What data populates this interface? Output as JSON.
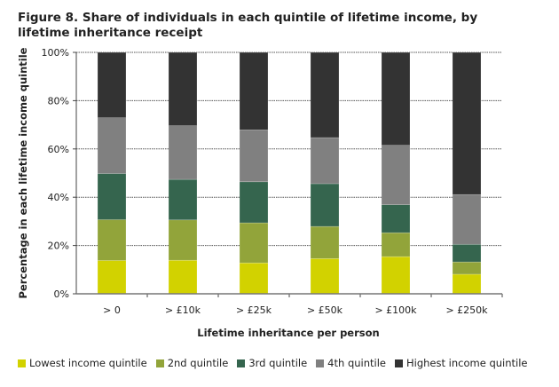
{
  "chart_data": {
    "type": "bar",
    "stacked": true,
    "title": "Figure 8. Share of individuals in each quintile of lifetime income, by lifetime inheritance receipt",
    "xlabel": "Lifetime inheritance per person",
    "ylabel": "Percentage in each lifetime income quintile",
    "ylim": [
      0,
      100
    ],
    "yticks": [
      "0%",
      "20%",
      "40%",
      "60%",
      "80%",
      "100%"
    ],
    "grid": true,
    "legend_position": "bottom",
    "categories": [
      "> 0",
      "> £10k",
      "> £25k",
      "> £50k",
      "> £100k",
      "> £250k"
    ],
    "series": [
      {
        "name": "Lowest income quintile",
        "color": "#d2d200",
        "values": [
          13.8,
          13.9,
          12.8,
          14.6,
          15.4,
          8.1
        ]
      },
      {
        "name": "2nd quintile",
        "color": "#92a43a",
        "values": [
          16.9,
          16.7,
          16.6,
          13.3,
          9.9,
          5.1
        ]
      },
      {
        "name": "3rd quintile",
        "color": "#35654e",
        "values": [
          19.1,
          16.8,
          17.0,
          17.7,
          11.6,
          7.3
        ]
      },
      {
        "name": "4th quintile",
        "color": "#808080",
        "values": [
          23.1,
          22.2,
          21.5,
          19.1,
          24.6,
          20.6
        ]
      },
      {
        "name": "Highest income quintile",
        "color": "#333333",
        "values": [
          27.1,
          30.4,
          32.1,
          35.3,
          38.5,
          58.9
        ]
      }
    ]
  }
}
